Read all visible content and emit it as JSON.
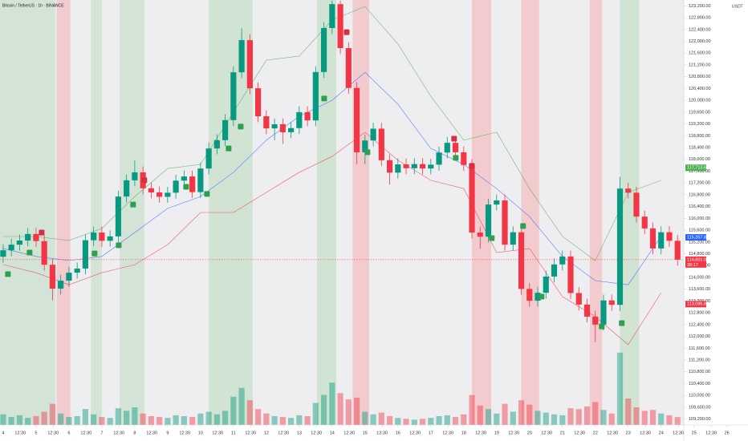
{
  "chart_data": {
    "type": "candlestick",
    "title": "Bitcoin / TetherUS · 1h · BINANCE",
    "currency": "USDT",
    "up_color": "#089981",
    "down_color": "#f23645",
    "grid": false,
    "x": [
      0,
      6,
      12,
      18,
      24,
      30,
      36,
      42,
      48,
      54,
      60,
      66,
      72,
      78,
      84,
      90,
      96,
      102,
      108,
      114,
      120,
      126,
      132,
      138,
      144,
      150,
      156,
      162,
      168,
      174,
      180,
      186,
      192,
      198,
      204,
      210,
      216,
      222,
      228,
      234,
      240,
      246,
      252,
      258,
      264,
      270,
      276,
      282,
      288,
      294,
      300,
      306,
      312,
      318,
      324,
      330,
      336,
      342,
      348,
      354,
      360,
      366,
      372,
      378,
      384,
      390,
      396,
      402,
      408,
      414,
      420,
      426,
      432,
      438,
      444,
      450,
      456,
      462,
      468,
      474,
      480,
      486,
      492
    ],
    "open": [
      114700,
      114920,
      115110,
      115250,
      115470,
      115230,
      114430,
      113620,
      113890,
      114160,
      114300,
      115260,
      115520,
      115240,
      115390,
      116740,
      117290,
      117560,
      117020,
      116880,
      116730,
      116870,
      117280,
      117420,
      116890,
      117690,
      118370,
      118650,
      119330,
      120950,
      122040,
      120410,
      119460,
      119050,
      119190,
      118920,
      119060,
      119600,
      119320,
      120960,
      122450,
      123260,
      121770,
      120420,
      118240,
      118640,
      119040,
      117970,
      117550,
      117830,
      117700,
      117840,
      117690,
      117820,
      118230,
      118560,
      118240,
      117810,
      115520,
      115380,
      116470,
      116610,
      115110,
      115530,
      113610,
      113210,
      113480,
      114030,
      114440,
      114710,
      113470,
      113080,
      112670,
      112400,
      113220,
      113070,
      117010,
      116870,
      116060,
      115660,
      114980,
      115530,
      115240
    ],
    "high": [
      115120,
      115310,
      115450,
      115670,
      115670,
      115430,
      114630,
      114090,
      114360,
      114500,
      115460,
      115720,
      115720,
      115590,
      116940,
      117490,
      117960,
      117760,
      117220,
      117080,
      117070,
      117480,
      117620,
      117620,
      117890,
      118570,
      118850,
      119530,
      121150,
      122440,
      122240,
      120610,
      119660,
      119390,
      119390,
      119260,
      119800,
      119800,
      121160,
      122650,
      123380,
      123380,
      121970,
      120620,
      118840,
      119240,
      119240,
      118170,
      118030,
      118030,
      118040,
      118040,
      118020,
      118430,
      118760,
      118760,
      118440,
      118010,
      115720,
      116670,
      116810,
      116810,
      115730,
      115730,
      113810,
      113680,
      114230,
      114640,
      114910,
      114910,
      113670,
      113280,
      112870,
      113420,
      113420,
      117410,
      117210,
      117070,
      116260,
      115860,
      115730,
      115730,
      115440
    ],
    "low": [
      114500,
      114720,
      114910,
      115050,
      115030,
      114230,
      113220,
      113420,
      113690,
      113960,
      114100,
      115060,
      115040,
      115040,
      115190,
      116540,
      117090,
      116820,
      116680,
      116530,
      116530,
      116670,
      117080,
      116690,
      116690,
      117490,
      118170,
      118450,
      119130,
      120750,
      120210,
      119260,
      118850,
      118650,
      118520,
      118720,
      118860,
      119120,
      119120,
      120760,
      122250,
      121570,
      120220,
      117840,
      117840,
      118440,
      117770,
      117150,
      117350,
      117500,
      117500,
      117490,
      117490,
      117620,
      118030,
      118040,
      117610,
      115320,
      114980,
      115180,
      116270,
      114910,
      114910,
      113410,
      113010,
      113010,
      113280,
      113830,
      114240,
      113270,
      112880,
      112470,
      111800,
      112200,
      112870,
      112870,
      116670,
      115860,
      115460,
      114780,
      114780,
      115040,
      114400
    ],
    "close": [
      114920,
      115110,
      115250,
      115470,
      115230,
      114430,
      113620,
      113890,
      114160,
      114300,
      115260,
      115520,
      115240,
      115390,
      116740,
      117290,
      117560,
      117020,
      116880,
      116730,
      116870,
      117280,
      117420,
      116890,
      117690,
      118370,
      118650,
      119330,
      120950,
      122040,
      120410,
      119460,
      119050,
      119190,
      118920,
      119060,
      119600,
      119320,
      120960,
      122450,
      123260,
      121770,
      120420,
      118240,
      118640,
      119040,
      117970,
      117550,
      117830,
      117700,
      117840,
      117690,
      117820,
      118230,
      118560,
      118240,
      117810,
      115520,
      115380,
      116470,
      116610,
      115110,
      115530,
      113610,
      113210,
      113480,
      114030,
      114440,
      114710,
      113470,
      113080,
      112670,
      112400,
      113220,
      113070,
      117010,
      116870,
      116060,
      115660,
      114980,
      115530,
      115240,
      114601.09
    ],
    "volume": [
      1200,
      900,
      1100,
      800,
      1000,
      1500,
      2400,
      1300,
      900,
      1000,
      1800,
      1200,
      900,
      800,
      1900,
      1600,
      2000,
      1300,
      1000,
      900,
      800,
      1100,
      1000,
      900,
      1300,
      1500,
      1200,
      1600,
      3200,
      4200,
      2800,
      1800,
      1300,
      1000,
      900,
      800,
      1100,
      1000,
      2500,
      3400,
      4800,
      3600,
      2900,
      3100,
      1500,
      1200,
      1400,
      1000,
      800,
      700,
      600,
      700,
      800,
      1000,
      1100,
      900,
      1200,
      3400,
      2200,
      1800,
      1300,
      2400,
      1500,
      2800,
      2300,
      1600,
      1400,
      1200,
      1100,
      1900,
      1800,
      2100,
      2600,
      1700,
      1300,
      8200,
      3000,
      2000,
      1600,
      1700,
      1300,
      1100,
      900
    ],
    "volume_lim": [
      0,
      10000
    ],
    "xlim": [
      -2.3,
      543.4
    ],
    "ylim": [
      109000,
      123400
    ],
    "yticks": [
      {
        "value": 109200,
        "label": "109,200.00"
      },
      {
        "value": 109600,
        "label": "109,600.00"
      },
      {
        "value": 110000,
        "label": "110,000.00"
      },
      {
        "value": 110400,
        "label": "110,400.00"
      },
      {
        "value": 110800,
        "label": "110,800.00"
      },
      {
        "value": 111200,
        "label": "111,200.00"
      },
      {
        "value": 111600,
        "label": "111,600.00"
      },
      {
        "value": 112000,
        "label": "112,000.00"
      },
      {
        "value": 112400,
        "label": "112,400.00"
      },
      {
        "value": 112800,
        "label": "112,800.00"
      },
      {
        "value": 113200,
        "label": "113,200.00"
      },
      {
        "value": 113600,
        "label": "113,600.00"
      },
      {
        "value": 114000,
        "label": "114,000.00"
      },
      {
        "value": 114400,
        "label": "114,400.00"
      },
      {
        "value": 114800,
        "label": "114,800.00"
      },
      {
        "value": 115200,
        "label": "115,200.00"
      },
      {
        "value": 115600,
        "label": "115,600.00"
      },
      {
        "value": 116000,
        "label": "116,000.00"
      },
      {
        "value": 116400,
        "label": "116,400.00"
      },
      {
        "value": 116800,
        "label": "116,800.00"
      },
      {
        "value": 117200,
        "label": "117,200.00"
      },
      {
        "value": 117600,
        "label": "117,600.00"
      },
      {
        "value": 118000,
        "label": "118,000.00"
      },
      {
        "value": 118400,
        "label": "118,400.00"
      },
      {
        "value": 118800,
        "label": "118,800.00"
      },
      {
        "value": 119200,
        "label": "119,200.00"
      },
      {
        "value": 119600,
        "label": "119,600.00"
      },
      {
        "value": 120000,
        "label": "120,000.00"
      },
      {
        "value": 120400,
        "label": "120,400.00"
      },
      {
        "value": 120800,
        "label": "120,800.00"
      },
      {
        "value": 121200,
        "label": "121,200.00"
      },
      {
        "value": 121600,
        "label": "121,600.00"
      },
      {
        "value": 122000,
        "label": "122,000.00"
      },
      {
        "value": 122400,
        "label": "122,400.00"
      },
      {
        "value": 122800,
        "label": "122,800.00"
      },
      {
        "value": 123200,
        "label": "123,200.00"
      }
    ],
    "xticks": [
      {
        "value": 0,
        "label": "4"
      },
      {
        "value": 12.5,
        "label": "12:30"
      },
      {
        "value": 24,
        "label": "5"
      },
      {
        "value": 36.5,
        "label": "12:30"
      },
      {
        "value": 48,
        "label": "6"
      },
      {
        "value": 60.5,
        "label": "12:30"
      },
      {
        "value": 72,
        "label": "7"
      },
      {
        "value": 84.5,
        "label": "12:30"
      },
      {
        "value": 96,
        "label": "8"
      },
      {
        "value": 108.5,
        "label": "12:30"
      },
      {
        "value": 120,
        "label": "9"
      },
      {
        "value": 132.5,
        "label": "12:30"
      },
      {
        "value": 144,
        "label": "10"
      },
      {
        "value": 156.5,
        "label": "12:30"
      },
      {
        "value": 168,
        "label": "11"
      },
      {
        "value": 180.5,
        "label": "12:30"
      },
      {
        "value": 192,
        "label": "12"
      },
      {
        "value": 204.5,
        "label": "12:30"
      },
      {
        "value": 216,
        "label": "13"
      },
      {
        "value": 228.5,
        "label": "12:30"
      },
      {
        "value": 240,
        "label": "14"
      },
      {
        "value": 252.5,
        "label": "12:30"
      },
      {
        "value": 264,
        "label": "15"
      },
      {
        "value": 276.5,
        "label": "12:30"
      },
      {
        "value": 288,
        "label": "16"
      },
      {
        "value": 300.5,
        "label": "12:30"
      },
      {
        "value": 312,
        "label": "17"
      },
      {
        "value": 324.5,
        "label": "12:30"
      },
      {
        "value": 336,
        "label": "18"
      },
      {
        "value": 348.5,
        "label": "12:30"
      },
      {
        "value": 360,
        "label": "19"
      },
      {
        "value": 372.5,
        "label": "12:30"
      },
      {
        "value": 384,
        "label": "20"
      },
      {
        "value": 396.5,
        "label": "12:30"
      },
      {
        "value": 408,
        "label": "21"
      },
      {
        "value": 420.5,
        "label": "12:30"
      },
      {
        "value": 432,
        "label": "22"
      },
      {
        "value": 444.5,
        "label": "12:30"
      },
      {
        "value": 456,
        "label": "23"
      },
      {
        "value": 468.5,
        "label": "12:30"
      },
      {
        "value": 480,
        "label": "24"
      },
      {
        "value": 492.5,
        "label": "12:30"
      },
      {
        "value": 504,
        "label": "25"
      },
      {
        "value": 516.5,
        "label": "12:30"
      },
      {
        "value": 528,
        "label": "26"
      }
    ],
    "band_x": [
      0,
      24,
      48,
      72,
      96,
      120,
      144,
      168,
      192,
      216,
      240,
      264,
      288,
      312,
      336,
      360,
      384,
      408,
      432,
      456,
      480
    ],
    "bands": [
      {
        "color": "#4caf50",
        "values": [
          115385,
          115385,
          115250,
          115660,
          116740,
          117690,
          117830,
          119600,
          121360,
          121500,
          122720,
          123180,
          121910,
          120140,
          118650,
          118920,
          117010,
          115390,
          114570,
          116880,
          117290
        ]
      },
      {
        "color": "#2962ff",
        "values": [
          114980,
          114710,
          114570,
          114710,
          115520,
          116340,
          116740,
          117560,
          118650,
          119460,
          120000,
          120950,
          119870,
          118370,
          117830,
          117010,
          116060,
          114710,
          113890,
          113750,
          115390
        ]
      },
      {
        "color": "#f23645",
        "values": [
          114430,
          114160,
          113750,
          114160,
          114430,
          115110,
          116200,
          116200,
          116880,
          117560,
          118100,
          118920,
          117970,
          117290,
          117010,
          114840,
          114980,
          113350,
          112670,
          111720,
          113480
        ]
      }
    ],
    "zones": [
      {
        "start": -2.3,
        "end": 38,
        "color": "rgba(76,175,80,0.16)"
      },
      {
        "start": 39,
        "end": 49,
        "color": "rgba(255,82,82,0.22)"
      },
      {
        "start": 64,
        "end": 72,
        "color": "rgba(76,175,80,0.16)"
      },
      {
        "start": 85,
        "end": 103,
        "color": "rgba(76,175,80,0.16)"
      },
      {
        "start": 150,
        "end": 182,
        "color": "rgba(76,175,80,0.18)"
      },
      {
        "start": 229,
        "end": 243,
        "color": "rgba(76,175,80,0.18)"
      },
      {
        "start": 255,
        "end": 267,
        "color": "rgba(255,82,82,0.22)"
      },
      {
        "start": 342,
        "end": 356,
        "color": "rgba(255,82,82,0.22)"
      },
      {
        "start": 378,
        "end": 391,
        "color": "rgba(255,82,82,0.22)"
      },
      {
        "start": 428,
        "end": 437,
        "color": "rgba(255,82,82,0.22)"
      },
      {
        "start": 450,
        "end": 464,
        "color": "rgba(76,175,80,0.18)"
      }
    ],
    "signals": [
      {
        "x": 3.5,
        "y": 114110,
        "color": "#2e9e4f"
      },
      {
        "x": 19.3,
        "y": 114840,
        "color": "#2e9e4f"
      },
      {
        "x": 66.7,
        "y": 114810,
        "color": "#2e9e4f"
      },
      {
        "x": 84.3,
        "y": 115090,
        "color": "#2e9e4f"
      },
      {
        "x": 94.8,
        "y": 116470,
        "color": "#2e9e4f"
      },
      {
        "x": 133.5,
        "y": 117070,
        "color": "#2e9e4f"
      },
      {
        "x": 148.7,
        "y": 116830,
        "color": "#2e9e4f"
      },
      {
        "x": 164.5,
        "y": 118370,
        "color": "#2e9e4f"
      },
      {
        "x": 173.3,
        "y": 119110,
        "color": "#2e9e4f"
      },
      {
        "x": 234.2,
        "y": 120060,
        "color": "#2e9e4f"
      },
      {
        "x": 265.8,
        "y": 118240,
        "color": "#2e9e4f"
      },
      {
        "x": 330.2,
        "y": 118050,
        "color": "#2e9e4f"
      },
      {
        "x": 356.5,
        "y": 115330,
        "color": "#2e9e4f"
      },
      {
        "x": 379.3,
        "y": 115740,
        "color": "#2e9e4f"
      },
      {
        "x": 392.8,
        "y": 113350,
        "color": "#2e9e4f"
      },
      {
        "x": 436.7,
        "y": 112340,
        "color": "#2e9e4f"
      },
      {
        "x": 451.3,
        "y": 112450,
        "color": "#2e9e4f"
      },
      {
        "x": 28.1,
        "y": 115520,
        "color": "#d32f45"
      },
      {
        "x": 103,
        "y": 117290,
        "color": "#d32f45"
      },
      {
        "x": 250.6,
        "y": 122310,
        "color": "#d32f45"
      },
      {
        "x": 329,
        "y": 118700,
        "color": "#d32f45"
      },
      {
        "x": 341.9,
        "y": 117780,
        "color": "#d32f45"
      }
    ],
    "price_labels": [
      {
        "value": 117713.67,
        "label": "117,713.67",
        "color": "#4caf50"
      },
      {
        "value": 115357.82,
        "label": "115,357.82",
        "color": "#2962ff"
      },
      {
        "value": 114601.09,
        "label": "114,601.09",
        "color": "#f23645",
        "countdown": "39:17"
      },
      {
        "value": 113095.82,
        "label": "113,095.82",
        "color": "#f23645"
      }
    ]
  }
}
